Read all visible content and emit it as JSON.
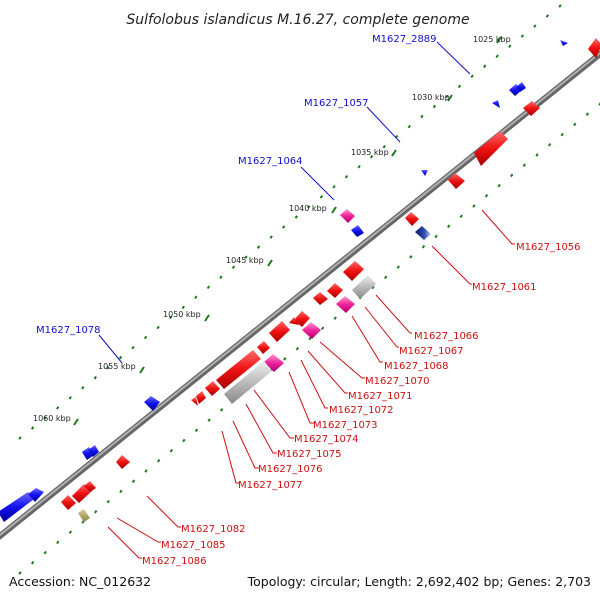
{
  "title": "Sulfolobus islandicus M.16.27, complete genome",
  "footer": {
    "accession": "Accession: NC_012632",
    "summary": "Topology: circular; Length: 2,692,402 bp; Genes: 2,703"
  },
  "colors": {
    "backbone": "#888888",
    "tick": "#1a7a1a",
    "gene_red": "#ee1111",
    "gene_blue": "#1111ee",
    "gene_magenta": "#ee2299",
    "gene_gray": "#bbbbbb",
    "gene_navy": "#102080",
    "gene_olive": "#a8a060",
    "label_fwd": "#1010cc",
    "label_rev": "#cc1010",
    "leader": "#cc1010",
    "leader_fwd": "#1010cc"
  },
  "scale_ticks": [
    {
      "kbp": 1025,
      "label": "1025 kbp"
    },
    {
      "kbp": 1030,
      "label": "1030 kbp"
    },
    {
      "kbp": 1035,
      "label": "1035 kbp"
    },
    {
      "kbp": 1040,
      "label": "1040 kbp"
    },
    {
      "kbp": 1045,
      "label": "1045 kbp"
    },
    {
      "kbp": 1050,
      "label": "1050 kbp"
    },
    {
      "kbp": 1055,
      "label": "1055 kbp"
    },
    {
      "kbp": 1060,
      "label": "1060 kbp"
    }
  ],
  "gene_labels_forward": [
    "M1627_2889",
    "M1627_1057",
    "M1627_1064",
    "M1627_1078"
  ],
  "gene_labels_reverse": [
    "M1627_1056",
    "M1627_1061",
    "M1627_1066",
    "M1627_1067",
    "M1627_1068",
    "M1627_1070",
    "M1627_1071",
    "M1627_1072",
    "M1627_1073",
    "M1627_1074",
    "M1627_1075",
    "M1627_1076",
    "M1627_1077",
    "M1627_1082",
    "M1627_1085",
    "M1627_1086"
  ]
}
